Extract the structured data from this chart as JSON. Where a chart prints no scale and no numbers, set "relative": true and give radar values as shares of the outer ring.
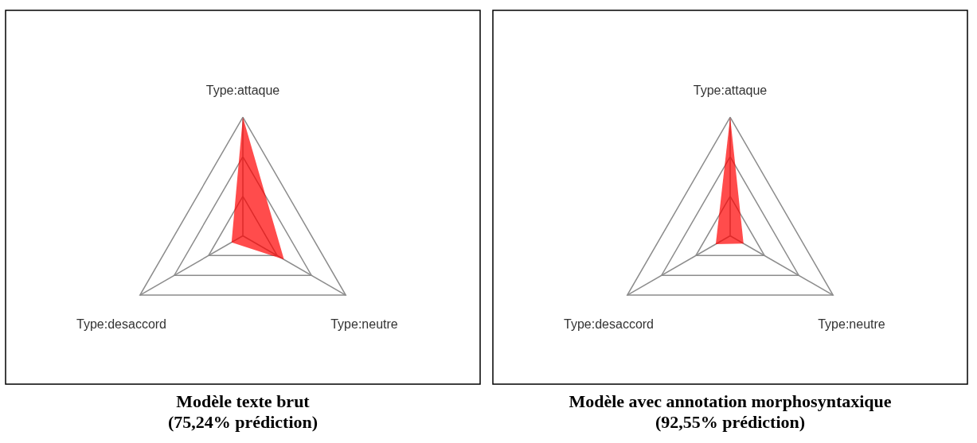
{
  "chart_data": [
    {
      "type": "radar",
      "title": "Modèle texte brut",
      "subtitle": "(75,24% prédiction)",
      "categories": [
        "Type:attaque",
        "Type:neutre",
        "Type:desaccord"
      ],
      "relative": true,
      "grid": true,
      "series": [
        {
          "color": "#ff0000",
          "values": [
            1.0,
            0.4,
            0.11
          ]
        }
      ]
    },
    {
      "type": "radar",
      "title": "Modèle avec annotation morphosyntaxique",
      "subtitle": "(92,55% prédiction)",
      "categories": [
        "Type:attaque",
        "Type:neutre",
        "Type:desaccord"
      ],
      "relative": true,
      "grid": true,
      "series": [
        {
          "color": "#ff0000",
          "values": [
            1.0,
            0.13,
            0.14
          ]
        }
      ]
    }
  ]
}
